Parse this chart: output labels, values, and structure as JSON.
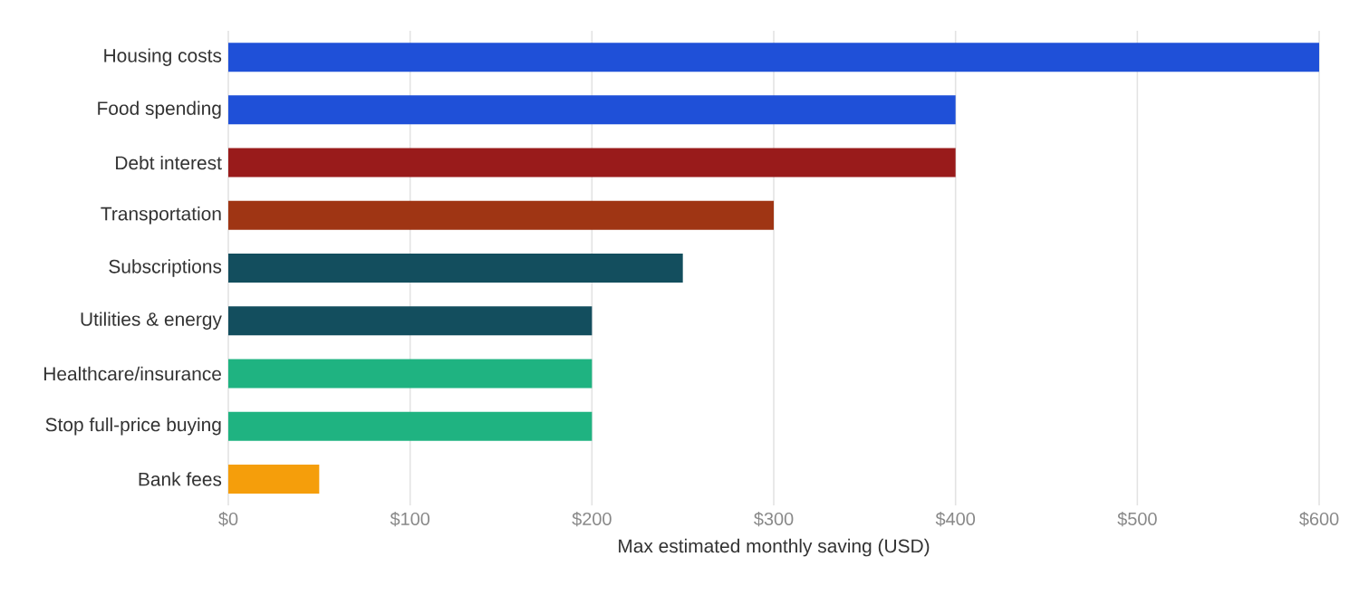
{
  "chart_data": {
    "type": "bar",
    "orientation": "horizontal",
    "xlabel": "Max estimated monthly saving (USD)",
    "categories": [
      "Housing costs",
      "Food spending",
      "Debt interest",
      "Transportation",
      "Subscriptions",
      "Utilities & energy",
      "Healthcare/insurance",
      "Stop full-price buying",
      "Bank fees"
    ],
    "values": [
      600,
      400,
      400,
      300,
      250,
      200,
      200,
      200,
      50
    ],
    "colors": [
      "#1f50d8",
      "#1f50d8",
      "#991b1b",
      "#9f3514",
      "#134e5e",
      "#134e5e",
      "#1fb381",
      "#1fb381",
      "#f59e0b"
    ],
    "xlim": [
      0,
      600
    ],
    "xticks": [
      {
        "value": 0,
        "label": "$0"
      },
      {
        "value": 100,
        "label": "$100"
      },
      {
        "value": 200,
        "label": "$200"
      },
      {
        "value": 300,
        "label": "$300"
      },
      {
        "value": 400,
        "label": "$400"
      },
      {
        "value": 500,
        "label": "$500"
      },
      {
        "value": 600,
        "label": "$600"
      }
    ],
    "grid": "x"
  }
}
